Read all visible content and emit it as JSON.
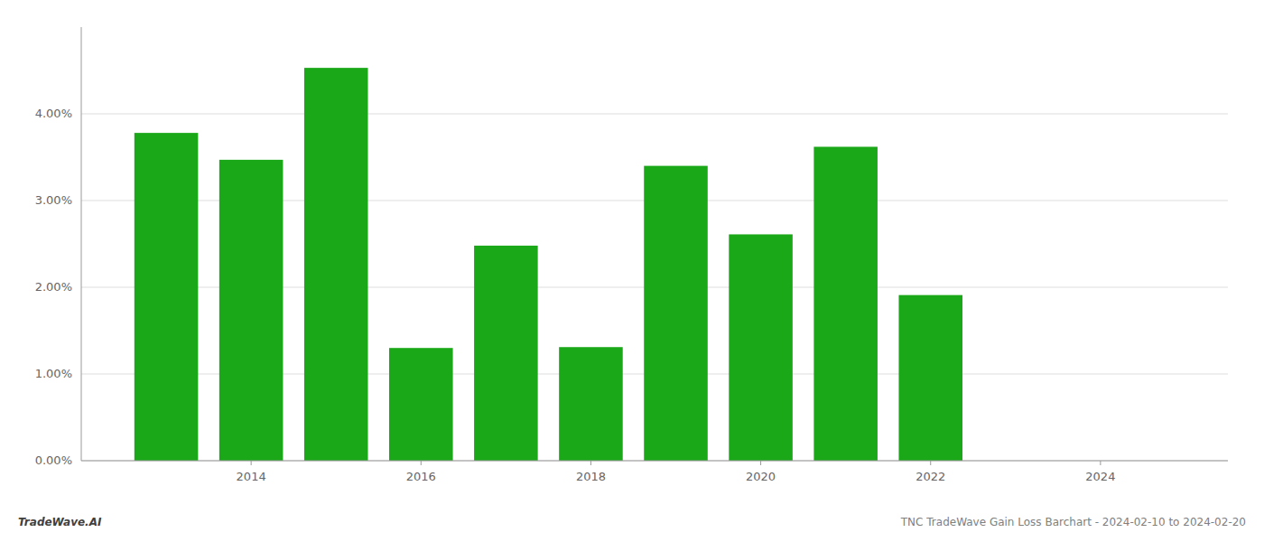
{
  "chart_data": {
    "type": "bar",
    "x": [
      2013,
      2014,
      2015,
      2016,
      2017,
      2018,
      2019,
      2020,
      2021,
      2022,
      2023
    ],
    "values": [
      0.0378,
      0.0347,
      0.0453,
      0.013,
      0.0248,
      0.0131,
      0.034,
      0.0261,
      0.0362,
      0.0191,
      0.0
    ],
    "color": "#1ba818",
    "xlim": [
      2012.0,
      2025.5
    ],
    "xticks": [
      2014,
      2016,
      2018,
      2020,
      2022,
      2024
    ],
    "ylim": [
      0.0,
      0.05
    ],
    "yticks": [
      {
        "value": 0.0,
        "label": "0.00%"
      },
      {
        "value": 0.01,
        "label": "1.00%"
      },
      {
        "value": 0.02,
        "label": "2.00%"
      },
      {
        "value": 0.03,
        "label": "3.00%"
      },
      {
        "value": 0.04,
        "label": "4.00%"
      }
    ],
    "grid": true,
    "annotations": [
      "TradeWave.AI",
      "TNC TradeWave Gain Loss Barchart - 2024-02-10 to 2024-02-20"
    ]
  }
}
